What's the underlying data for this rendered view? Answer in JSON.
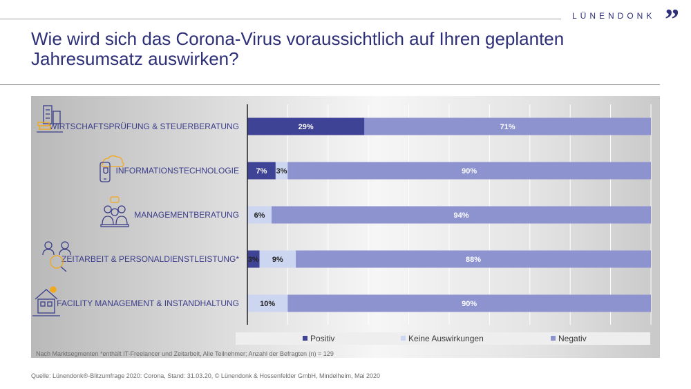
{
  "header": {
    "brand": "LÜNENDONK",
    "brand_mark": "”"
  },
  "title_line1": "Wie wird sich das Corona-Virus voraussichtlich auf Ihren geplanten",
  "title_line2": "Jahresumsatz auswirken?",
  "footnote": "Nach Marktsegmenten  *enthält IT-Freelancer und Zeitarbeit,  Alle Teilnehmer; Anzahl der Befragten (n) = 129",
  "source": "Quelle: Lünendonk®-Blitzumfrage 2020: Corona, Stand: 31.03.20, © Lünendonk & Hossenfelder GmbH, Mindelheim, Mai 2020",
  "colors": {
    "positiv": "#3f4396",
    "keine": "#cdd6f0",
    "negativ": "#8c93cf",
    "label": "#3a3d8a",
    "icon": "#3a3d8a",
    "icon_accent": "#f2a81d"
  },
  "chart_data": {
    "type": "bar",
    "orientation": "horizontal",
    "stacked": true,
    "normalized": true,
    "xlim": [
      0,
      100
    ],
    "grid": true,
    "legend_position": "bottom",
    "categories": [
      "WIRTSCHAFTSPRÜFUNG & STEUERBERATUNG",
      "INFORMATIONSTECHNOLOGIE",
      "MANAGEMENTBERATUNG",
      "ZEITARBEIT & PERSONALDIENSTLEISTUNG*",
      "FACILITY MANAGEMENT & INSTANDHALTUNG"
    ],
    "icons": [
      "buildings-coins-icon",
      "cloud-phone-shield-icon",
      "team-chat-icon",
      "people-search-icon",
      "house-sun-icon"
    ],
    "series": [
      {
        "name": "Positiv",
        "values": [
          29,
          7,
          0,
          3,
          0
        ],
        "labels": [
          "29%",
          "7%",
          "",
          "3%",
          ""
        ]
      },
      {
        "name": "Keine Auswirkungen",
        "values": [
          0,
          3,
          6,
          9,
          10
        ],
        "labels": [
          "",
          "3%",
          "6%",
          "9%",
          "10%"
        ]
      },
      {
        "name": "Negativ",
        "values": [
          71,
          90,
          94,
          88,
          90
        ],
        "labels": [
          "71%",
          "90%",
          "94%",
          "88%",
          "90%"
        ]
      }
    ]
  }
}
